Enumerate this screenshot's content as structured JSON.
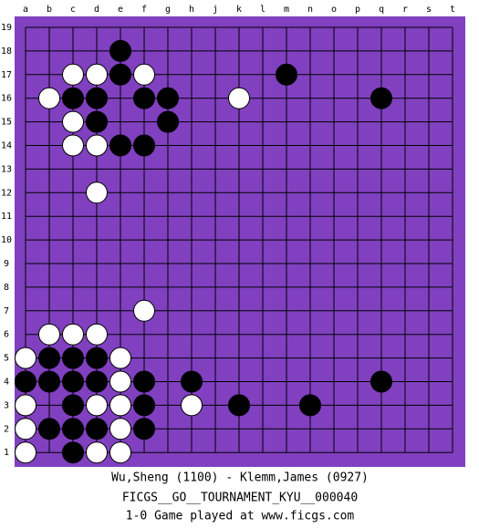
{
  "board": {
    "columns": [
      "a",
      "b",
      "c",
      "d",
      "e",
      "f",
      "g",
      "h",
      "j",
      "k",
      "l",
      "m",
      "n",
      "o",
      "p",
      "q",
      "r",
      "s",
      "t"
    ],
    "rows": [
      19,
      18,
      17,
      16,
      15,
      14,
      13,
      12,
      11,
      10,
      9,
      8,
      7,
      6,
      5,
      4,
      3,
      2,
      1
    ],
    "stones": [
      {
        "point": "e18",
        "color": "black"
      },
      {
        "point": "c17",
        "color": "white"
      },
      {
        "point": "d17",
        "color": "white"
      },
      {
        "point": "e17",
        "color": "black"
      },
      {
        "point": "f17",
        "color": "white"
      },
      {
        "point": "m17",
        "color": "black"
      },
      {
        "point": "b16",
        "color": "white"
      },
      {
        "point": "c16",
        "color": "black"
      },
      {
        "point": "d16",
        "color": "black"
      },
      {
        "point": "f16",
        "color": "black"
      },
      {
        "point": "g16",
        "color": "black"
      },
      {
        "point": "k16",
        "color": "white"
      },
      {
        "point": "q16",
        "color": "black"
      },
      {
        "point": "c15",
        "color": "white"
      },
      {
        "point": "d15",
        "color": "black"
      },
      {
        "point": "g15",
        "color": "black"
      },
      {
        "point": "c14",
        "color": "white"
      },
      {
        "point": "d14",
        "color": "white"
      },
      {
        "point": "e14",
        "color": "black"
      },
      {
        "point": "f14",
        "color": "black"
      },
      {
        "point": "d12",
        "color": "white"
      },
      {
        "point": "f7",
        "color": "white"
      },
      {
        "point": "b6",
        "color": "white"
      },
      {
        "point": "c6",
        "color": "white"
      },
      {
        "point": "d6",
        "color": "white"
      },
      {
        "point": "a5",
        "color": "white"
      },
      {
        "point": "b5",
        "color": "black"
      },
      {
        "point": "c5",
        "color": "black"
      },
      {
        "point": "d5",
        "color": "black"
      },
      {
        "point": "e5",
        "color": "white"
      },
      {
        "point": "a4",
        "color": "black"
      },
      {
        "point": "b4",
        "color": "black"
      },
      {
        "point": "c4",
        "color": "black"
      },
      {
        "point": "d4",
        "color": "black"
      },
      {
        "point": "e4",
        "color": "white"
      },
      {
        "point": "f4",
        "color": "black"
      },
      {
        "point": "h4",
        "color": "black"
      },
      {
        "point": "q4",
        "color": "black"
      },
      {
        "point": "a3",
        "color": "white"
      },
      {
        "point": "c3",
        "color": "black"
      },
      {
        "point": "d3",
        "color": "white"
      },
      {
        "point": "e3",
        "color": "white"
      },
      {
        "point": "f3",
        "color": "black"
      },
      {
        "point": "h3",
        "color": "white"
      },
      {
        "point": "k3",
        "color": "black"
      },
      {
        "point": "n3",
        "color": "black"
      },
      {
        "point": "a2",
        "color": "white"
      },
      {
        "point": "b2",
        "color": "black"
      },
      {
        "point": "c2",
        "color": "black"
      },
      {
        "point": "d2",
        "color": "black"
      },
      {
        "point": "e2",
        "color": "white"
      },
      {
        "point": "f2",
        "color": "black"
      },
      {
        "point": "a1",
        "color": "white"
      },
      {
        "point": "c1",
        "color": "black"
      },
      {
        "point": "d1",
        "color": "white"
      },
      {
        "point": "e1",
        "color": "white"
      }
    ]
  },
  "footer": {
    "players": "Wu,Sheng (1100) - Klemm,James (0927)",
    "event": "FICGS__GO__TOURNAMENT_KYU__000040",
    "result": "1-0   Game played at www.ficgs.com"
  }
}
